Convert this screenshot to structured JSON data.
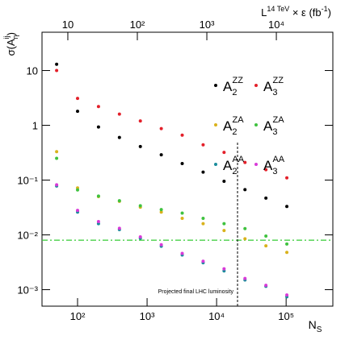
{
  "chart_data": {
    "type": "scatter",
    "x": [
      50,
      100,
      200,
      400,
      800,
      1600,
      3200,
      6400,
      12800,
      25600,
      51200,
      102400
    ],
    "series": [
      {
        "name": "A",
        "sub": "2",
        "sup": "ZZ",
        "color": "#000000",
        "values": [
          13,
          1.8,
          0.93,
          0.6,
          0.41,
          0.29,
          0.2,
          0.14,
          0.095,
          0.067,
          0.047,
          0.033
        ]
      },
      {
        "name": "A",
        "sub": "3",
        "sup": "ZZ",
        "color": "#e3202a",
        "values": [
          10,
          3.1,
          2.2,
          1.6,
          1.2,
          0.87,
          0.66,
          0.44,
          0.32,
          0.21,
          0.155,
          0.11
        ]
      },
      {
        "name": "A",
        "sub": "2",
        "sup": "ZA",
        "color": "#d9b21c",
        "values": [
          0.33,
          0.072,
          0.05,
          0.041,
          0.032,
          0.026,
          0.02,
          0.016,
          0.012,
          0.0085,
          0.0063,
          0.0048
        ]
      },
      {
        "name": "A",
        "sub": "3",
        "sup": "ZA",
        "color": "#3fc23f",
        "values": [
          0.25,
          0.066,
          0.051,
          0.042,
          0.034,
          0.029,
          0.025,
          0.02,
          0.016,
          0.013,
          0.0095,
          0.0068
        ]
      },
      {
        "name": "A",
        "sub": "2",
        "sup": "AA",
        "color": "#1a8c9c",
        "values": [
          0.078,
          0.026,
          0.016,
          0.0125,
          0.0087,
          0.0062,
          0.0043,
          0.0031,
          0.0022,
          0.0015,
          0.00115,
          0.00074
        ]
      },
      {
        "name": "A",
        "sub": "3",
        "sup": "AA",
        "color": "#d83ad8",
        "values": [
          0.082,
          0.028,
          0.0175,
          0.0132,
          0.0092,
          0.0066,
          0.0046,
          0.0033,
          0.0024,
          0.0016,
          0.0012,
          0.0008
        ]
      }
    ],
    "xlog": true,
    "ylog": true,
    "xlim": [
      30.8,
      470000
    ],
    "xticks": [
      {
        "value": 100,
        "label": "10²"
      },
      {
        "value": 1000,
        "label": "10³"
      },
      {
        "value": 10000,
        "label": "10⁴"
      },
      {
        "value": 100000,
        "label": "10⁵"
      }
    ],
    "ylim": [
      0.0005,
      50
    ],
    "yticks": [
      {
        "value": 0.001,
        "label": "10⁻³"
      },
      {
        "value": 0.01,
        "label": "10⁻²"
      },
      {
        "value": 0.1,
        "label": "10⁻¹"
      },
      1,
      10
    ],
    "x2lim": [
      4.25,
      65000
    ],
    "x2ticks": [
      10,
      {
        "value": 100,
        "label": "10²"
      },
      {
        "value": 1000,
        "label": "10³"
      },
      {
        "value": 10000,
        "label": "10⁴"
      }
    ],
    "x_label": {
      "base": "N",
      "sub": "S"
    },
    "y_label": {
      "base": "σ(A",
      "sub": "η",
      "sup": "ij",
      "end": ")"
    },
    "x2_label": {
      "base": "L",
      "sup": "14 TeV",
      "mid": " × ε (fb",
      "sup2": "-1",
      "end": ")"
    },
    "hline": {
      "value": 0.008,
      "color": "#33cc33"
    },
    "vline": {
      "value": 20000
    },
    "annotation": "Projected final LHC luminosity",
    "legend": "upper right"
  }
}
